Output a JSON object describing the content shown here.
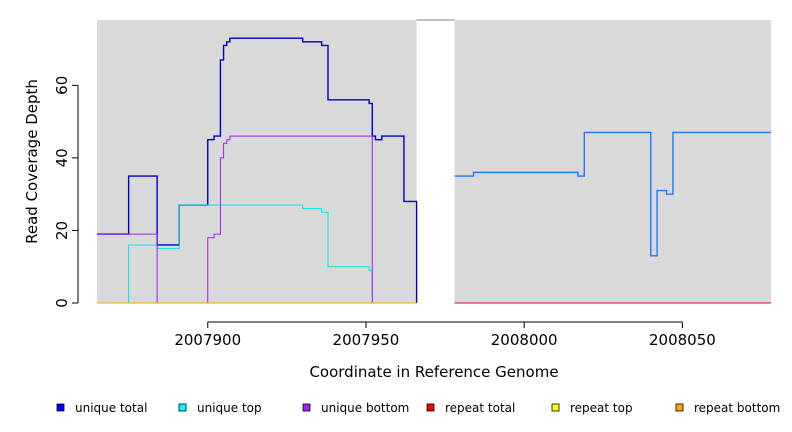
{
  "chart_data": {
    "type": "line",
    "title": "",
    "xlabel": "Coordinate in Reference Genome",
    "ylabel": "Read Coverage Depth",
    "xlim": [
      2007865,
      2008078
    ],
    "ylim": [
      0,
      78
    ],
    "xticks": [
      2007900,
      2007950,
      2008000,
      2008050
    ],
    "yticks": [
      0,
      20,
      40,
      60
    ],
    "grid": false,
    "panel_background": "#d9d9d9",
    "gap": {
      "x_start": 2007966,
      "x_end": 2007978
    },
    "legend_position": "bottom",
    "legend": [
      {
        "name": "unique total",
        "color": "#0000ff"
      },
      {
        "name": "unique top",
        "color": "#00ffff"
      },
      {
        "name": "unique bottom",
        "color": "#a020f0"
      },
      {
        "name": "repeat total",
        "color": "#ff0000"
      },
      {
        "name": "repeat top",
        "color": "#ffff00"
      },
      {
        "name": "repeat bottom",
        "color": "#ffa500"
      }
    ],
    "series": [
      {
        "name": "unique total",
        "color": "#0000cc",
        "x": [
          2007865,
          2007875,
          2007884,
          2007891,
          2007900,
          2007902,
          2007904,
          2007905,
          2007906,
          2007907,
          2007930,
          2007936,
          2007938,
          2007951,
          2007952,
          2007953,
          2007955,
          2007962,
          2007966
        ],
        "y": [
          19,
          35,
          16,
          27,
          45,
          46,
          67,
          71,
          72,
          73,
          72,
          71,
          56,
          55,
          46,
          45,
          46,
          28,
          0
        ]
      },
      {
        "name": "unique top",
        "color": "#00e5e5",
        "x": [
          2007865,
          2007875,
          2007884,
          2007891,
          2007930,
          2007936,
          2007938,
          2007951,
          2007952,
          2007966
        ],
        "y": [
          0,
          16,
          15,
          27,
          26,
          25,
          10,
          9,
          0,
          0
        ]
      },
      {
        "name": "unique bottom",
        "color": "#a020f0",
        "x": [
          2007865,
          2007875,
          2007884,
          2007900,
          2007902,
          2007904,
          2007905,
          2007906,
          2007907,
          2007951,
          2007952,
          2007966
        ],
        "y": [
          19,
          19,
          0,
          18,
          19,
          40,
          44,
          45,
          46,
          46,
          0,
          0
        ]
      },
      {
        "name": "repeat bottom",
        "color": "#ffa500",
        "x": [
          2007865,
          2007966
        ],
        "y": [
          0,
          0
        ]
      },
      {
        "name": "unique total (second segment)",
        "color": "#1e78ff",
        "x": [
          2007978,
          2007984,
          2008017,
          2008019,
          2008040,
          2008042,
          2008045,
          2008047,
          2008078
        ],
        "y": [
          35,
          36,
          35,
          47,
          13,
          31,
          30,
          47,
          47
        ]
      },
      {
        "name": "repeat total",
        "color": "#e0004f",
        "x": [
          2007978,
          2008078
        ],
        "y": [
          0,
          0
        ]
      }
    ]
  }
}
